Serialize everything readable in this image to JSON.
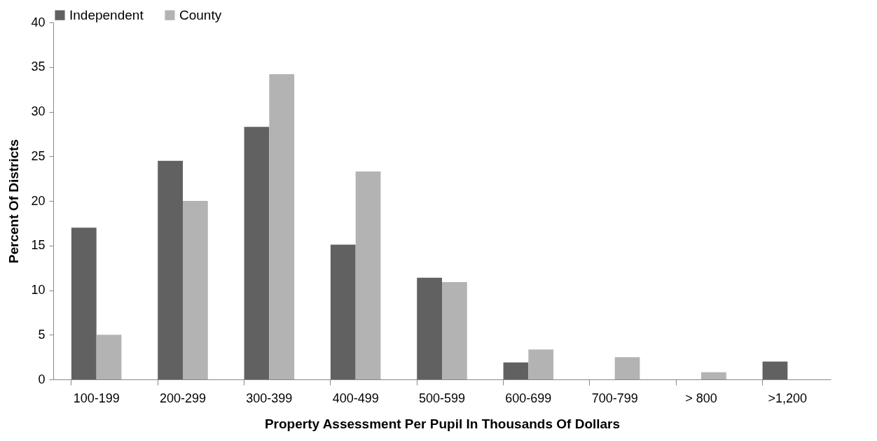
{
  "chart_data": {
    "type": "bar",
    "xlabel": "Property Assessment Per Pupil In Thousands Of Dollars",
    "ylabel": "Percent Of Districts",
    "categories": [
      "100-199",
      "200-299",
      "300-399",
      "400-499",
      "500-599",
      "600-699",
      "700-799",
      "> 800",
      ">1,200"
    ],
    "series": [
      {
        "name": "Independent",
        "color": "#616161",
        "values": [
          17,
          24.5,
          28.3,
          15.1,
          11.4,
          1.9,
          0,
          0,
          2.0
        ]
      },
      {
        "name": "County",
        "color": "#b3b3b3",
        "values": [
          5,
          20,
          34.2,
          23.3,
          10.9,
          3.35,
          2.5,
          0.8,
          0
        ]
      }
    ],
    "ylim": [
      0,
      40
    ],
    "yticks": [
      0,
      5,
      10,
      15,
      20,
      25,
      30,
      35,
      40
    ],
    "grid": false,
    "legend": "top"
  }
}
